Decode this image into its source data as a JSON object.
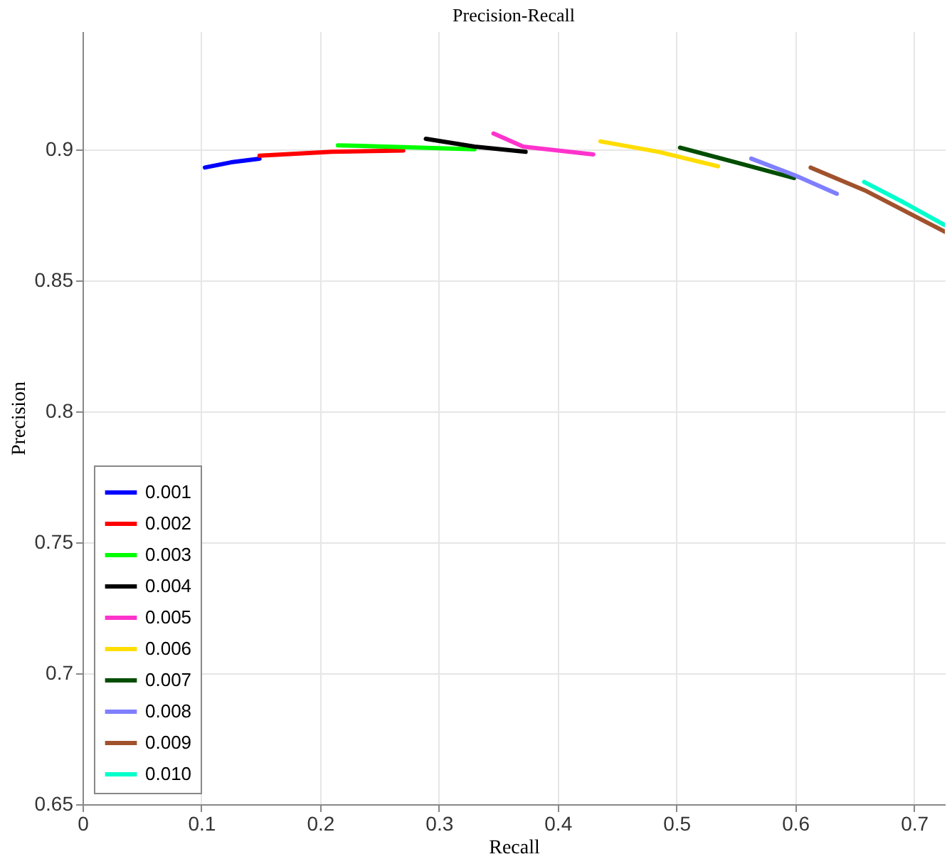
{
  "chart_data": {
    "type": "line",
    "title": "Precision-Recall",
    "xlabel": "Recall",
    "ylabel": "Precision",
    "xlim": [
      0,
      0.726
    ],
    "ylim": [
      0.65,
      0.945
    ],
    "xticks": [
      0,
      0.1,
      0.2,
      0.3,
      0.4,
      0.5,
      0.6,
      0.7
    ],
    "yticks": [
      0.65,
      0.7,
      0.75,
      0.8,
      0.85,
      0.9
    ],
    "grid": true,
    "legend": "bottom left",
    "marker": "none",
    "line_style": "solid",
    "series": [
      {
        "name": "0.001",
        "color": "#0000ff",
        "x": [
          0.103,
          0.125,
          0.149
        ],
        "values": [
          0.893,
          0.895,
          0.8964
        ]
      },
      {
        "name": "0.002",
        "color": "#ff0000",
        "x": [
          0.149,
          0.21,
          0.27
        ],
        "values": [
          0.8975,
          0.899,
          0.8995
        ]
      },
      {
        "name": "0.003",
        "color": "#00ff00",
        "x": [
          0.215,
          0.27,
          0.33
        ],
        "values": [
          0.9015,
          0.9008,
          0.9
        ]
      },
      {
        "name": "0.004",
        "color": "#000000",
        "x": [
          0.289,
          0.33,
          0.373
        ],
        "values": [
          0.904,
          0.901,
          0.899
        ]
      },
      {
        "name": "0.005",
        "color": "#ff33cc",
        "x": [
          0.346,
          0.371,
          0.43
        ],
        "values": [
          0.906,
          0.901,
          0.898
        ]
      },
      {
        "name": "0.006",
        "color": "#ffdd00",
        "x": [
          0.436,
          0.485,
          0.535
        ],
        "values": [
          0.903,
          0.899,
          0.8935
        ]
      },
      {
        "name": "0.007",
        "color": "#004d00",
        "x": [
          0.503,
          0.55,
          0.599
        ],
        "values": [
          0.9006,
          0.895,
          0.889
        ]
      },
      {
        "name": "0.008",
        "color": "#7f7fff",
        "x": [
          0.563,
          0.6,
          0.635
        ],
        "values": [
          0.8964,
          0.89,
          0.883
        ]
      },
      {
        "name": "0.009",
        "color": "#a0522d",
        "x": [
          0.613,
          0.66,
          0.726
        ],
        "values": [
          0.893,
          0.884,
          0.8685
        ]
      },
      {
        "name": "0.010",
        "color": "#00ffcc",
        "x": [
          0.658,
          0.69,
          0.726
        ],
        "values": [
          0.8875,
          0.88,
          0.871
        ]
      }
    ]
  }
}
